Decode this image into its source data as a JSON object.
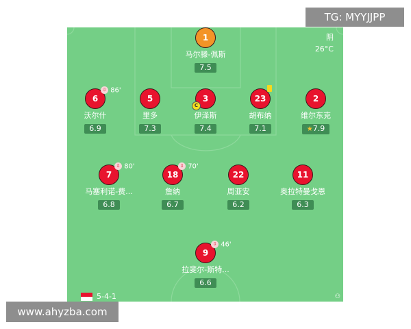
{
  "watermarks": {
    "top": "TG: MYYJJPP",
    "bottom": "www.ahyzba.com"
  },
  "weather": {
    "condition": "阴",
    "temperature": "26°C"
  },
  "formation": "5-4-1",
  "team_color": "#e8132e",
  "goalkeeper_color": "#f39427",
  "players": [
    {
      "number": "1",
      "name": "马尔滕-佩斯",
      "rating": "7.5",
      "gk": true
    },
    {
      "number": "6",
      "name": "沃尔什",
      "rating": "6.9",
      "sub": "86'"
    },
    {
      "number": "5",
      "name": "里多",
      "rating": "7.3"
    },
    {
      "number": "3",
      "name": "伊泽斯",
      "rating": "7.4",
      "captain": "C"
    },
    {
      "number": "23",
      "name": "胡布纳",
      "rating": "7.1",
      "yellow_card": true
    },
    {
      "number": "2",
      "name": "维尔东克",
      "rating": "7.9",
      "best_player": true
    },
    {
      "number": "7",
      "name": "马塞利诺-费...",
      "rating": "6.8",
      "sub": "80'"
    },
    {
      "number": "18",
      "name": "詹纳",
      "rating": "6.7",
      "sub": "70'"
    },
    {
      "number": "22",
      "name": "周亚安",
      "rating": "6.2"
    },
    {
      "number": "11",
      "name": "奥拉特曼戈恩",
      "rating": "6.3"
    },
    {
      "number": "9",
      "name": "拉斐尔-斯特...",
      "rating": "6.6",
      "sub": "46'"
    }
  ]
}
